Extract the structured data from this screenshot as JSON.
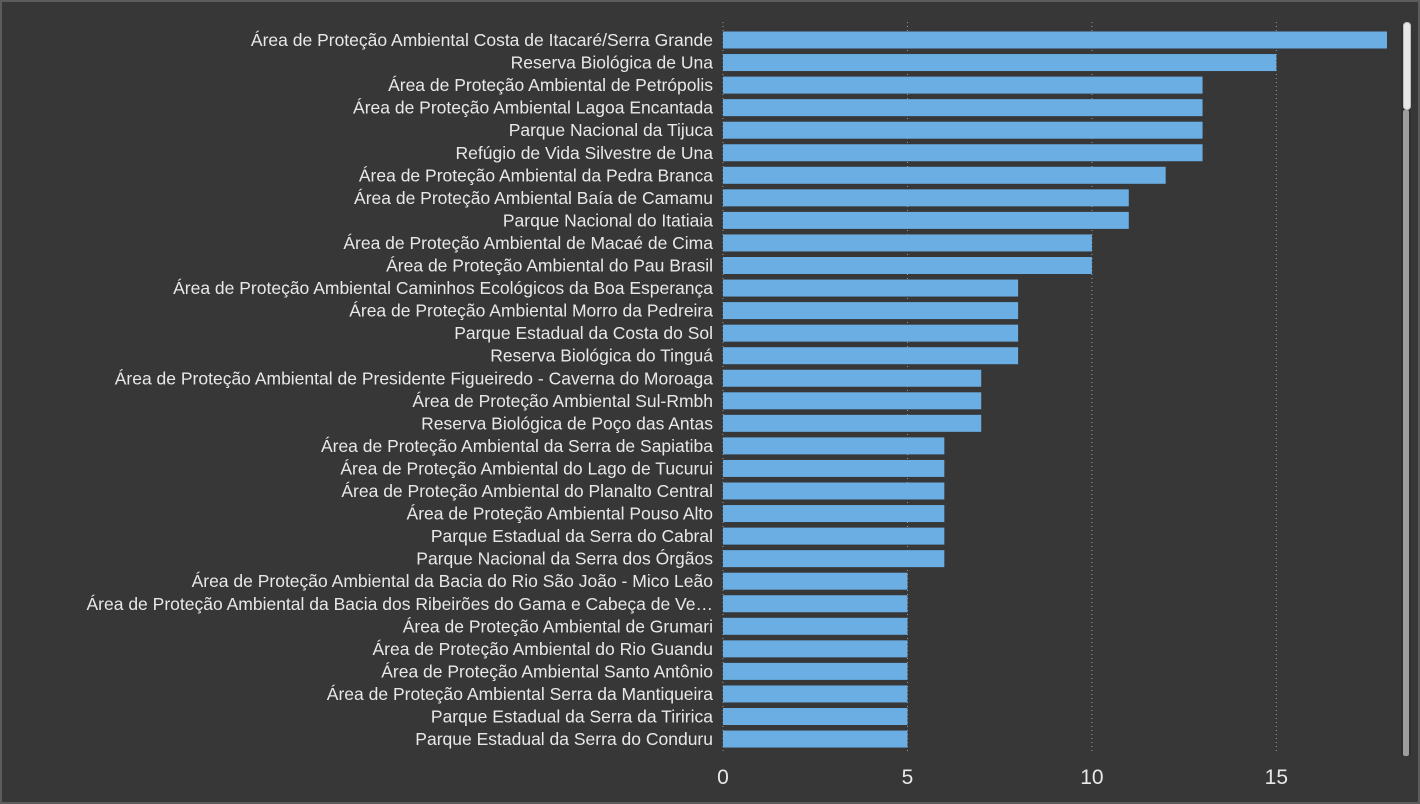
{
  "chart_data": {
    "type": "bar",
    "orientation": "horizontal",
    "categories": [
      "Área de Proteção Ambiental Costa de Itacaré/Serra Grande",
      "Reserva Biológica de Una",
      "Área de Proteção Ambiental de Petrópolis",
      "Área de Proteção Ambiental Lagoa Encantada",
      "Parque Nacional da Tijuca",
      "Refúgio de Vida Silvestre de Una",
      "Área de Proteção Ambiental da Pedra Branca",
      "Área de Proteção Ambiental Baía de Camamu",
      "Parque Nacional do Itatiaia",
      "Área de Proteção Ambiental de Macaé de Cima",
      "Área de Proteção Ambiental do Pau Brasil",
      "Área de Proteção Ambiental Caminhos Ecológicos da Boa Esperança",
      "Área de Proteção Ambiental Morro da Pedreira",
      "Parque Estadual da Costa do Sol",
      "Reserva Biológica do Tinguá",
      "Área de Proteção Ambiental de Presidente Figueiredo - Caverna do Moroaga",
      "Área de Proteção Ambiental Sul-Rmbh",
      "Reserva Biológica de Poço das Antas",
      "Área de Proteção Ambiental da Serra de Sapiatiba",
      "Área de Proteção Ambiental do Lago de Tucurui",
      "Área de Proteção Ambiental do Planalto Central",
      "Área de Proteção Ambiental Pouso Alto",
      "Parque Estadual da Serra do Cabral",
      "Parque Nacional da Serra dos Órgãos",
      "Área de Proteção Ambiental da Bacia do Rio São João - Mico Leão",
      "Área de Proteção Ambiental da Bacia dos Ribeirões do Gama e Cabeça de Ve…",
      "Área de Proteção Ambiental de Grumari",
      "Área de Proteção Ambiental do Rio Guandu",
      "Área de Proteção Ambiental Santo Antônio",
      "Área de Proteção Ambiental Serra da Mantiqueira",
      "Parque Estadual da Serra da Tiririca",
      "Parque Estadual da Serra do Conduru"
    ],
    "values": [
      18,
      15,
      13,
      13,
      13,
      13,
      12,
      11,
      11,
      10,
      10,
      8,
      8,
      8,
      8,
      7,
      7,
      7,
      6,
      6,
      6,
      6,
      6,
      6,
      5,
      5,
      5,
      5,
      5,
      5,
      5,
      5
    ],
    "xlim": [
      0,
      18
    ],
    "xticks": [
      "0",
      "5",
      "10",
      "15"
    ],
    "xtick_values": [
      0,
      5,
      10,
      15
    ],
    "title": "",
    "xlabel": "",
    "ylabel": "",
    "grid": "vertical dotted",
    "legend": "none",
    "bar_color": "#6aaee4",
    "background_color": "#373737",
    "text_color": "#e8e8e8"
  },
  "scrollbar": {
    "position_fraction": 0.0,
    "visible_fraction": 0.12
  }
}
